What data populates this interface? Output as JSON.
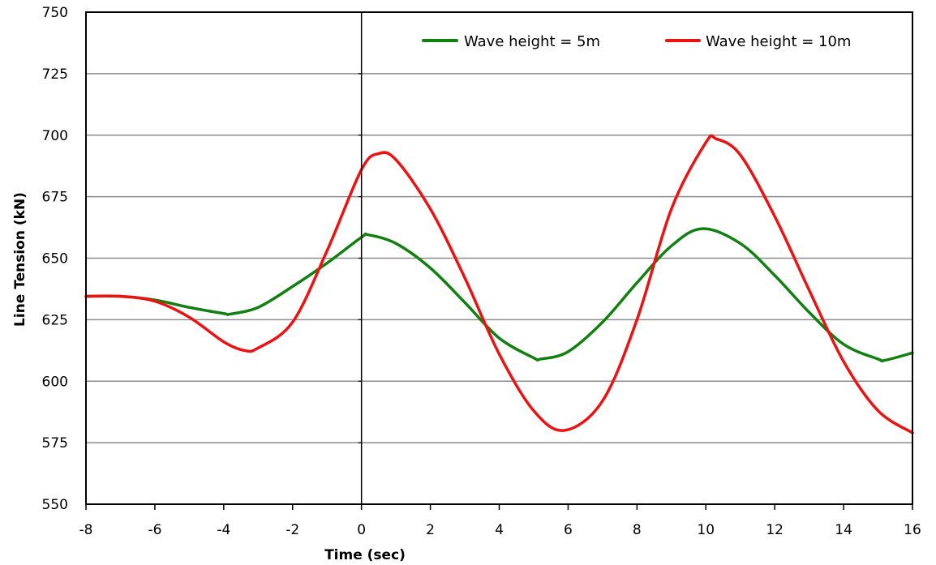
{
  "chart_data": {
    "type": "line",
    "title": "",
    "xlabel": "Time (sec)",
    "ylabel": "Line Tension (kN)",
    "xlim": [
      -8,
      16
    ],
    "ylim": [
      550,
      750
    ],
    "xticks": [
      -8,
      -6,
      -4,
      -2,
      0,
      2,
      4,
      6,
      8,
      10,
      12,
      14,
      16
    ],
    "yticks": [
      550,
      575,
      600,
      625,
      650,
      675,
      700,
      725,
      750
    ],
    "grid": "horizontal",
    "legend_position": "top-right",
    "series": [
      {
        "name": "Wave height = 5m",
        "color": "#118011",
        "x": [
          -8,
          -7,
          -6,
          -5,
          -4,
          -3.8,
          -3,
          -2,
          -1,
          0,
          0.2,
          1,
          2,
          3,
          4,
          5,
          5.2,
          6,
          7,
          8,
          9,
          9.9,
          11,
          12,
          13,
          14,
          15,
          15.2,
          16
        ],
        "values": [
          634.5,
          634.5,
          633,
          630,
          627.5,
          627.3,
          630,
          638.5,
          648,
          658.5,
          659.5,
          656,
          646,
          632,
          617.5,
          609.5,
          609,
          612,
          624,
          640,
          655,
          662,
          656,
          643,
          628,
          615,
          609,
          608.5,
          611.5
        ]
      },
      {
        "name": "Wave height = 10m",
        "color": "#ee1111",
        "x": [
          -8,
          -7,
          -6,
          -5,
          -4,
          -3.4,
          -3,
          -2,
          -1,
          0,
          0.5,
          1,
          2,
          3,
          4,
          5,
          5.9,
          7,
          8,
          9,
          10,
          10.3,
          11,
          12,
          13,
          14,
          15,
          16
        ],
        "values": [
          634.5,
          634.5,
          632.5,
          626,
          616,
          612.5,
          613.5,
          624,
          653,
          686,
          692.5,
          690,
          670,
          642,
          611,
          588,
          580,
          592,
          625,
          670,
          697,
          698.5,
          692,
          667,
          637,
          608,
          588,
          579
        ]
      }
    ]
  }
}
